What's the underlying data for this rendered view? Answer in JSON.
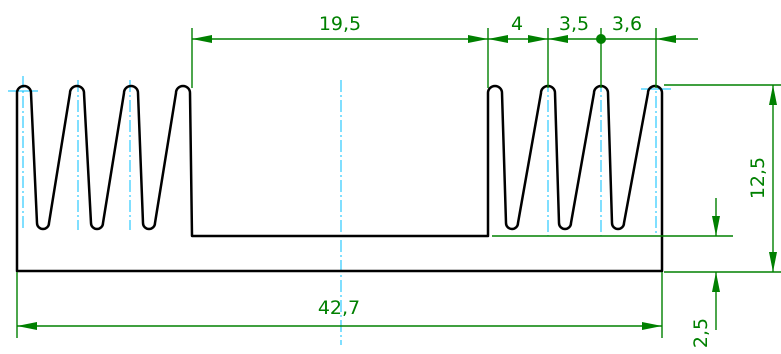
{
  "colors": {
    "profile": "#000000",
    "dimension": "#008000",
    "centerline": "#00bfff",
    "background": "#ffffff"
  },
  "dimensions": {
    "gap_width": "19,5",
    "fin_pitch": "4",
    "fin_pitch_2": "3,5",
    "fin_pitch_3": "3,6",
    "total_width": "42,7",
    "fin_height": "12,5",
    "base_thickness": "2,5"
  }
}
